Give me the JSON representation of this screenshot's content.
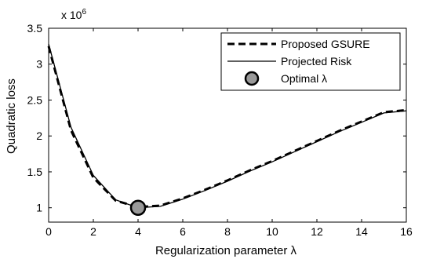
{
  "chart_data": {
    "type": "line",
    "xlabel": "Regularization parameter λ",
    "ylabel": "Quadratic loss",
    "y_exponent_label": "x 10",
    "y_exponent_power": "6",
    "xlim": [
      0,
      16
    ],
    "ylim": [
      0.8,
      3.5
    ],
    "x_ticks": [
      0,
      2,
      4,
      6,
      8,
      10,
      12,
      14,
      16
    ],
    "x_tick_labels": [
      "0",
      "2",
      "4",
      "6",
      "8",
      "10",
      "12",
      "14",
      "16"
    ],
    "y_ticks": [
      1,
      1.5,
      2,
      2.5,
      3,
      3.5
    ],
    "y_tick_labels": [
      "1",
      "1.5",
      "2",
      "2.5",
      "3",
      "3.5"
    ],
    "grid": false,
    "legend_position": "top-right",
    "series": [
      {
        "name": "Proposed GSURE",
        "style": "dashed",
        "x": [
          0,
          1,
          2,
          3,
          4,
          5,
          6,
          7,
          8,
          9,
          10,
          11,
          12,
          13,
          14,
          15,
          16
        ],
        "y": [
          3.25,
          2.08,
          1.42,
          1.1,
          1.01,
          1.03,
          1.13,
          1.25,
          1.38,
          1.52,
          1.65,
          1.79,
          1.93,
          2.07,
          2.2,
          2.33,
          2.36
        ]
      },
      {
        "name": "Projected Risk",
        "style": "solid",
        "x": [
          0,
          1,
          2,
          3,
          4,
          5,
          6,
          7,
          8,
          9,
          10,
          11,
          12,
          13,
          14,
          15,
          16
        ],
        "y": [
          3.28,
          2.12,
          1.45,
          1.11,
          1.0,
          1.02,
          1.12,
          1.24,
          1.37,
          1.51,
          1.64,
          1.78,
          1.92,
          2.06,
          2.19,
          2.32,
          2.35
        ]
      }
    ],
    "optimal_point": {
      "name": "Optimal λ",
      "x": 4,
      "y": 1.0,
      "color": "#999999"
    }
  }
}
